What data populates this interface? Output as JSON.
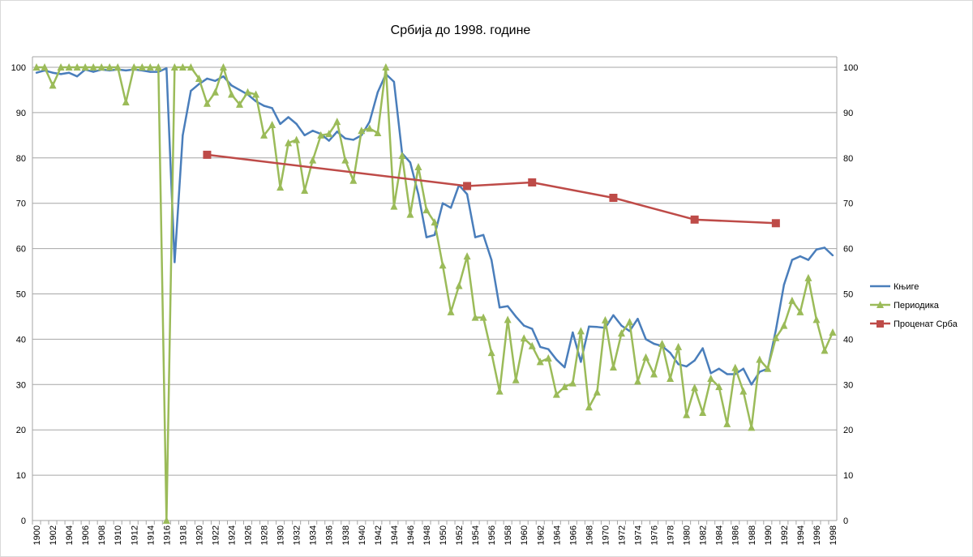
{
  "chart_data": {
    "type": "line",
    "title": "Србија до 1998. године",
    "xlabel": "",
    "ylabel": "",
    "ylim": [
      0,
      100
    ],
    "y2lim": [
      0,
      100
    ],
    "yticks": [
      0,
      10,
      20,
      30,
      40,
      50,
      60,
      70,
      80,
      90,
      100
    ],
    "grid": true,
    "legend_position": "right",
    "x_start": 1900,
    "x_end": 1998,
    "colors": {
      "knjige": "#4a7ebb",
      "periodika": "#9bbb59",
      "procenat": "#be4b48",
      "grid": "#a6a6a6"
    },
    "series": [
      {
        "key": "knjige",
        "name": "Књиге",
        "marker": "none",
        "values": [
          98.8,
          99.3,
          98.8,
          98.5,
          98.8,
          98,
          99.5,
          99,
          99.5,
          99.3,
          99.5,
          99.3,
          99.5,
          99.3,
          99,
          99,
          99.8,
          57,
          85,
          94.8,
          96.3,
          97.5,
          97,
          98,
          96,
          95,
          94,
          92.5,
          91.5,
          91,
          87.5,
          89,
          87.5,
          85,
          86,
          85.3,
          83.8,
          85.8,
          84.3,
          84,
          85,
          88,
          94.5,
          98.5,
          96.8,
          81,
          79,
          72,
          62.5,
          63,
          70,
          69,
          74,
          72,
          62.5,
          63,
          57.5,
          47,
          47.3,
          45,
          43,
          42.3,
          38.3,
          37.8,
          35.5,
          33.8,
          41.5,
          35,
          42.8,
          42.7,
          42.5,
          45.3,
          43,
          41.8,
          44.5,
          40,
          39,
          38.5,
          37,
          34.5,
          34,
          35.3,
          38,
          32.5,
          33.5,
          32.3,
          32.3,
          33.5,
          30,
          32.8,
          33.5,
          42,
          52,
          57.5,
          58.3,
          57.5,
          59.8,
          60.2,
          58.5
        ]
      },
      {
        "key": "periodika",
        "name": "Периодика",
        "marker": "triangle",
        "values": [
          100,
          100,
          96,
          100,
          100,
          100,
          100,
          100,
          100,
          100,
          100,
          92.3,
          100,
          100,
          100,
          100,
          0,
          100,
          100,
          100,
          97.5,
          92,
          94.5,
          100,
          94,
          91.8,
          94.5,
          94,
          85,
          87.3,
          73.5,
          83.3,
          84,
          72.8,
          79.5,
          85,
          85.3,
          88,
          79.5,
          75,
          86,
          86.5,
          85.5,
          100,
          69.3,
          80.5,
          67.5,
          78,
          68.5,
          65.8,
          56.3,
          46,
          51.8,
          58.3,
          44.8,
          44.8,
          37,
          28.5,
          44.3,
          31,
          40.2,
          38.5,
          35,
          35.8,
          27.8,
          29.5,
          30.3,
          41.8,
          25,
          28.3,
          44.2,
          33.8,
          41.3,
          43.8,
          30.7,
          36,
          32.3,
          39,
          31.3,
          38.3,
          23.3,
          29.3,
          23.8,
          31.3,
          29.5,
          21.3,
          33.7,
          28.5,
          20.5,
          35.5,
          33.5,
          40.3,
          43,
          48.5,
          46,
          53.5,
          44.3,
          37.5,
          41.5
        ]
      },
      {
        "key": "procenat",
        "name": "Проценат Срба",
        "marker": "square",
        "points": [
          [
            1921,
            80.7
          ],
          [
            1953,
            73.8
          ],
          [
            1961,
            74.6
          ],
          [
            1971,
            71.2
          ],
          [
            1981,
            66.4
          ],
          [
            1991,
            65.6
          ]
        ]
      }
    ]
  }
}
